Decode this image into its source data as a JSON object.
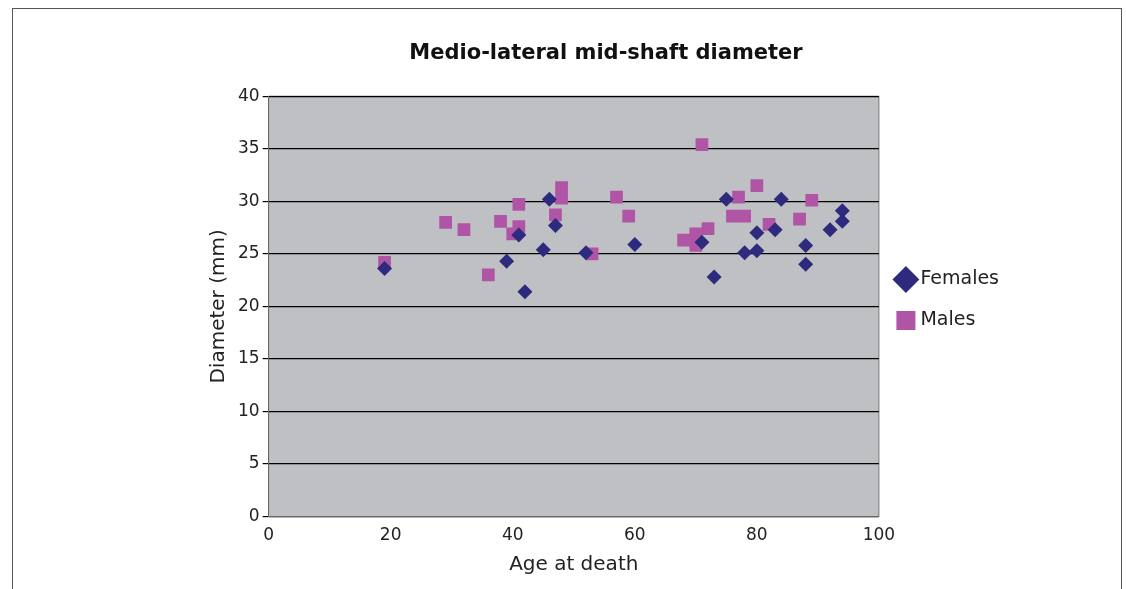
{
  "chart_data": {
    "type": "scatter",
    "title": "Medio-lateral mid-shaft diameter",
    "xlabel": "Age at death",
    "ylabel": "Diameter (mm)",
    "xlim": [
      0,
      100
    ],
    "xticks": [
      0,
      20,
      40,
      60,
      80,
      100
    ],
    "ylim": [
      0,
      40
    ],
    "yticks": [
      0,
      5,
      10,
      15,
      20,
      25,
      30,
      35,
      40
    ],
    "grid": "y",
    "legend": "right",
    "series": [
      {
        "name": "Females",
        "color": "#2e2a7e",
        "marker": "diamond",
        "x": [
          19,
          39,
          41,
          42,
          45,
          46,
          47,
          52,
          60,
          71,
          73,
          75,
          78,
          80,
          80,
          83,
          84,
          88,
          88,
          92,
          94,
          94
        ],
        "values": [
          23.6,
          24.3,
          26.8,
          21.4,
          25.4,
          30.2,
          27.7,
          25.1,
          25.9,
          26.1,
          22.8,
          30.2,
          25.1,
          25.3,
          27.0,
          27.3,
          30.2,
          25.8,
          24.0,
          27.3,
          28.1,
          29.1
        ]
      },
      {
        "name": "Males",
        "color": "#b055a5",
        "marker": "square",
        "x": [
          19,
          29,
          32,
          36,
          38,
          40,
          41,
          41,
          47,
          48,
          48,
          53,
          57,
          59,
          68,
          70,
          70,
          71,
          72,
          76,
          77,
          78,
          80,
          82,
          87,
          89
        ],
        "values": [
          24.2,
          28.0,
          27.3,
          23.0,
          28.1,
          26.9,
          29.7,
          27.6,
          28.7,
          31.3,
          30.3,
          25.0,
          30.4,
          28.6,
          26.3,
          26.9,
          25.8,
          35.4,
          27.4,
          28.6,
          30.4,
          28.6,
          31.5,
          27.8,
          28.3,
          30.1
        ]
      }
    ]
  }
}
